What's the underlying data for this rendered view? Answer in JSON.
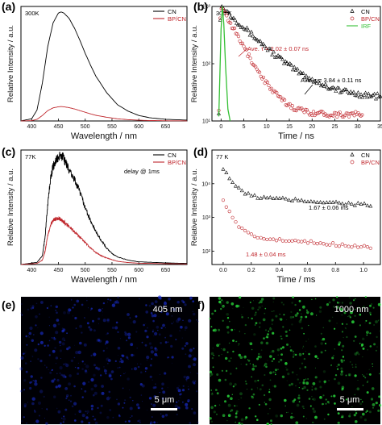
{
  "colors": {
    "cn": "#000000",
    "bpcn": "#c0272d",
    "irf": "#35c035",
    "micro_e": "#1a2fd6",
    "micro_f": "#28d63a",
    "scalebar": "#ffffff"
  },
  "chart_data": [
    {
      "panel_label": "(a)",
      "type": "line",
      "annotation": "300K",
      "xlabel": "Wavelength / nm",
      "ylabel": "Relative Intensity / a.u.",
      "xlim": [
        380,
        690
      ],
      "xticks": [
        400,
        450,
        500,
        550,
        600,
        650
      ],
      "ylim": [
        0,
        1.05
      ],
      "yticks": [],
      "legend_position": "top-right",
      "series": [
        {
          "name": "CN",
          "color": "cn",
          "x": [
            380,
            400,
            410,
            420,
            430,
            440,
            450,
            455,
            460,
            470,
            480,
            490,
            500,
            510,
            520,
            540,
            560,
            580,
            600,
            620,
            650,
            690
          ],
          "y": [
            0,
            0.02,
            0.1,
            0.35,
            0.68,
            0.9,
            0.99,
            1.0,
            0.99,
            0.94,
            0.85,
            0.74,
            0.62,
            0.51,
            0.41,
            0.26,
            0.15,
            0.09,
            0.05,
            0.03,
            0.015,
            0.008
          ]
        },
        {
          "name": "BP/CN",
          "color": "bpcn",
          "x": [
            380,
            400,
            410,
            420,
            430,
            440,
            450,
            455,
            460,
            470,
            480,
            490,
            500,
            510,
            520,
            540,
            560,
            580,
            600,
            620,
            650,
            690
          ],
          "y": [
            0,
            0.003,
            0.015,
            0.05,
            0.095,
            0.12,
            0.13,
            0.132,
            0.13,
            0.122,
            0.11,
            0.095,
            0.08,
            0.065,
            0.052,
            0.034,
            0.02,
            0.012,
            0.007,
            0.004,
            0.002,
            0.001
          ]
        }
      ]
    },
    {
      "panel_label": "(b)",
      "type": "scatter",
      "annotation": "300 K",
      "xlabel": "Time / ns",
      "ylabel": "Relative Intensity / a.u.",
      "xlim": [
        -2,
        35
      ],
      "xticks": [
        0,
        5,
        10,
        15,
        20,
        25,
        30,
        35
      ],
      "yscale": "log",
      "ylim": [
        10,
        1000
      ],
      "yticks": [
        {
          "value": 10,
          "label": "10¹"
        },
        {
          "value": 100,
          "label": "10²"
        },
        {
          "value": 1000,
          "label": "10³"
        }
      ],
      "legend_position": "top-right",
      "series": [
        {
          "name": "CN",
          "color": "cn",
          "marker": "triangle",
          "tau": 3.84,
          "peak": 1000,
          "floor": 25,
          "x_end": 35
        },
        {
          "name": "BP/CN",
          "color": "bpcn",
          "marker": "circle",
          "tau": 2.02,
          "peak": 1000,
          "floor": 13,
          "x_end": 31
        },
        {
          "name": "IRF",
          "color": "irf",
          "marker": "line",
          "x": [
            -0.5,
            0,
            0.3,
            0.6,
            1.0,
            1.5,
            2.0
          ],
          "y": [
            12,
            400,
            1000,
            500,
            90,
            16,
            10
          ]
        }
      ],
      "annotations": [
        {
          "text": "Ave. τ = 2.02 ± 0.07 ns",
          "color": "bpcn"
        },
        {
          "text": "Ave. τ = 3.84 ± 0.11 ns",
          "color": "cn"
        }
      ]
    },
    {
      "panel_label": "(c)",
      "type": "line",
      "annotation": "77K",
      "xlabel": "Wavelength / nm",
      "ylabel": "Relative Intensity / a.u.",
      "xlim": [
        380,
        690
      ],
      "xticks": [
        400,
        450,
        500,
        550,
        600,
        650
      ],
      "ylim": [
        0,
        1.05
      ],
      "yticks": [],
      "legend_position": "top-right",
      "legend_note": "delay @ 1ms",
      "series": [
        {
          "name": "CN",
          "color": "cn",
          "x": [
            380,
            410,
            420,
            425,
            430,
            435,
            440,
            445,
            450,
            455,
            460,
            465,
            470,
            480,
            490,
            500,
            510,
            520,
            530,
            540,
            550,
            560,
            580,
            600,
            650,
            690
          ],
          "y": [
            0,
            0.02,
            0.08,
            0.25,
            0.55,
            0.78,
            0.9,
            0.95,
            0.98,
            1.0,
            0.97,
            0.92,
            0.86,
            0.78,
            0.66,
            0.52,
            0.4,
            0.3,
            0.22,
            0.15,
            0.1,
            0.07,
            0.04,
            0.025,
            0.015,
            0.01
          ]
        },
        {
          "name": "BP/CN",
          "color": "bpcn",
          "x": [
            380,
            410,
            420,
            425,
            430,
            435,
            440,
            445,
            450,
            455,
            460,
            465,
            470,
            480,
            490,
            500,
            510,
            520,
            530,
            540,
            550,
            560,
            580,
            600,
            650,
            690
          ],
          "y": [
            0,
            0.01,
            0.04,
            0.12,
            0.26,
            0.36,
            0.4,
            0.42,
            0.42,
            0.41,
            0.39,
            0.37,
            0.35,
            0.3,
            0.25,
            0.2,
            0.15,
            0.11,
            0.08,
            0.06,
            0.045,
            0.03,
            0.018,
            0.012,
            0.008,
            0.005
          ]
        }
      ]
    },
    {
      "panel_label": "(d)",
      "type": "scatter",
      "annotation": "77 K",
      "xlabel": "Time / ms",
      "ylabel": "Relative Intensity / a.u.",
      "xlim": [
        -0.08,
        1.12
      ],
      "xticks": [
        0.0,
        0.2,
        0.4,
        0.6,
        0.8,
        1.0
      ],
      "yscale": "log",
      "ylim": [
        40,
        100000
      ],
      "yticks": [
        {
          "value": 100,
          "label": "10²"
        },
        {
          "value": 1000,
          "label": "10³"
        },
        {
          "value": 10000,
          "label": "10⁴"
        }
      ],
      "legend_position": "top-right",
      "series": [
        {
          "name": "CN",
          "color": "cn",
          "marker": "triangle",
          "tau": 1.67,
          "peak": 30000,
          "plateau": 4500,
          "end": 1500
        },
        {
          "name": "BP/CN",
          "color": "bpcn",
          "marker": "circle",
          "tau": 1.48,
          "peak": 3000,
          "plateau": 280,
          "end": 70
        }
      ],
      "annotations": [
        {
          "text": "1.67 ± 0.06 ms",
          "color": "cn"
        },
        {
          "text": "1.48 ± 0.04 ms",
          "color": "bpcn"
        }
      ]
    }
  ],
  "micrographs": [
    {
      "panel_label": "(e)",
      "wavelength_label": "405 nm",
      "scale_label": "5 μm",
      "tint": "micro_e"
    },
    {
      "panel_label": "(f)",
      "wavelength_label": "1000 nm",
      "scale_label": "5 μm",
      "tint": "micro_f"
    }
  ]
}
